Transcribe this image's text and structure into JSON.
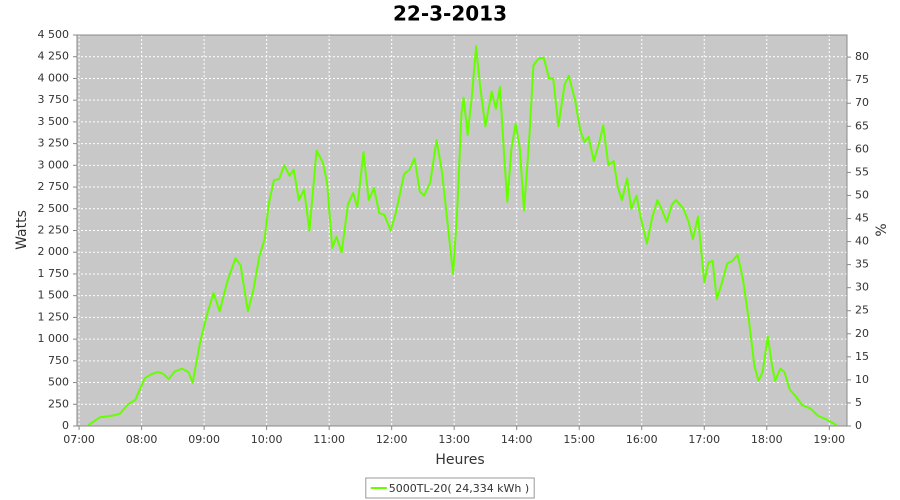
{
  "chart_data": {
    "type": "line",
    "title": "22-3-2013",
    "x_label": "Heures",
    "y_label": "Watts",
    "y2_label": "%",
    "x": [
      "07:09",
      "07:20",
      "07:32",
      "07:39",
      "07:47",
      "07:54",
      "08:03",
      "08:10",
      "08:16",
      "08:21",
      "08:26",
      "08:32",
      "08:39",
      "08:45",
      "08:49",
      "08:56",
      "09:02",
      "09:09",
      "09:15",
      "09:22",
      "09:30",
      "09:35",
      "09:42",
      "09:47",
      "09:53",
      "09:58",
      "10:02",
      "10:07",
      "10:12",
      "10:17",
      "10:22",
      "10:26",
      "10:31",
      "10:36",
      "10:41",
      "10:48",
      "10:54",
      "10:58",
      "11:03",
      "11:07",
      "11:12",
      "11:18",
      "11:23",
      "11:27",
      "11:33",
      "11:38",
      "11:43",
      "11:48",
      "11:53",
      "11:59",
      "12:04",
      "12:12",
      "12:17",
      "12:22",
      "12:27",
      "12:31",
      "12:37",
      "12:43",
      "12:48",
      "12:54",
      "12:59",
      "13:03",
      "13:07",
      "13:09",
      "13:13",
      "13:17",
      "13:21",
      "13:25",
      "13:30",
      "13:36",
      "13:40",
      "13:44",
      "13:48",
      "13:51",
      "13:55",
      "13:59",
      "14:03",
      "14:07",
      "14:12",
      "14:16",
      "14:21",
      "14:26",
      "14:31",
      "14:35",
      "14:40",
      "14:46",
      "14:50",
      "14:56",
      "15:01",
      "15:05",
      "15:09",
      "15:14",
      "15:19",
      "15:23",
      "15:28",
      "15:33",
      "15:37",
      "15:41",
      "15:46",
      "15:50",
      "15:55",
      "15:59",
      "16:05",
      "16:10",
      "16:15",
      "16:19",
      "16:24",
      "16:29",
      "16:33",
      "16:40",
      "16:45",
      "16:49",
      "16:54",
      "17:00",
      "17:04",
      "17:08",
      "17:12",
      "17:17",
      "17:22",
      "17:27",
      "17:32",
      "17:37",
      "17:43",
      "17:48",
      "17:52",
      "17:56",
      "18:01",
      "18:05",
      "18:08",
      "18:13",
      "18:17",
      "18:22",
      "18:28",
      "18:34",
      "18:42",
      "18:49",
      "18:58",
      "19:07"
    ],
    "series": [
      {
        "name": "5000TL-20( 24,334 kWh )",
        "color": "#66ff00",
        "values": [
          10,
          100,
          120,
          140,
          250,
          300,
          550,
          600,
          620,
          600,
          540,
          630,
          660,
          620,
          500,
          950,
          1250,
          1530,
          1320,
          1650,
          1930,
          1850,
          1320,
          1550,
          1950,
          2150,
          2550,
          2830,
          2840,
          3000,
          2880,
          2950,
          2600,
          2720,
          2250,
          3170,
          3030,
          2800,
          2050,
          2180,
          2000,
          2550,
          2680,
          2520,
          3150,
          2600,
          2740,
          2450,
          2430,
          2250,
          2450,
          2900,
          2950,
          3080,
          2700,
          2650,
          2800,
          3290,
          2950,
          2300,
          1750,
          2500,
          3600,
          3780,
          3350,
          3800,
          4370,
          3900,
          3450,
          3850,
          3650,
          3900,
          3100,
          2580,
          3200,
          3480,
          3200,
          2480,
          3300,
          4150,
          4230,
          4240,
          4000,
          4000,
          3450,
          3930,
          4030,
          3750,
          3400,
          3270,
          3330,
          3050,
          3250,
          3460,
          3000,
          3050,
          2750,
          2600,
          2850,
          2500,
          2650,
          2400,
          2100,
          2400,
          2600,
          2500,
          2350,
          2550,
          2600,
          2500,
          2350,
          2150,
          2410,
          1650,
          1880,
          1900,
          1460,
          1650,
          1870,
          1900,
          1970,
          1700,
          1200,
          700,
          520,
          620,
          1030,
          700,
          520,
          660,
          620,
          420,
          340,
          240,
          200,
          120,
          70,
          10
        ]
      }
    ],
    "xlim": [
      "06:58",
      "19:17"
    ],
    "xticks": [
      "07:00",
      "08:00",
      "09:00",
      "10:00",
      "11:00",
      "12:00",
      "13:00",
      "14:00",
      "15:00",
      "16:00",
      "17:00",
      "18:00",
      "19:00"
    ],
    "ylim": [
      0,
      4500
    ],
    "yticks": [
      0,
      250,
      500,
      750,
      {
        "value": 1000,
        "label": "1 000"
      },
      {
        "value": 1250,
        "label": "1 250"
      },
      {
        "value": 1500,
        "label": "1 500"
      },
      {
        "value": 1750,
        "label": "1 750"
      },
      {
        "value": 2000,
        "label": "2 000"
      },
      {
        "value": 2250,
        "label": "2 250"
      },
      {
        "value": 2500,
        "label": "2 500"
      },
      {
        "value": 2750,
        "label": "2 750"
      },
      {
        "value": 3000,
        "label": "3 000"
      },
      {
        "value": 3250,
        "label": "3 250"
      },
      {
        "value": 3500,
        "label": "3 500"
      },
      {
        "value": 3750,
        "label": "3 750"
      },
      {
        "value": 4000,
        "label": "4 000"
      },
      {
        "value": 4250,
        "label": "4 250"
      },
      {
        "value": 4500,
        "label": "4 500"
      }
    ],
    "y2lim": [
      0,
      84.8
    ],
    "y2ticks": [
      0,
      5,
      10,
      15,
      20,
      25,
      30,
      35,
      40,
      45,
      50,
      55,
      60,
      65,
      70,
      75,
      80
    ],
    "grid": true,
    "legend": "bottom"
  }
}
